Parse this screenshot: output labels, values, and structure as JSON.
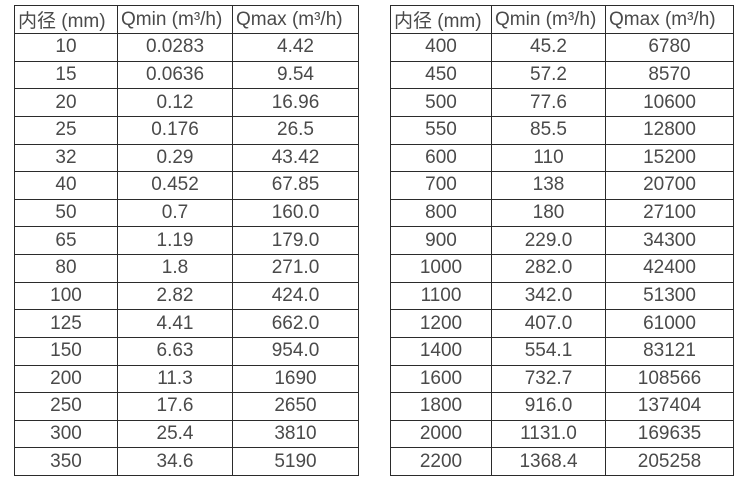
{
  "page": {
    "background_color": "#ffffff",
    "border_color": "#2b2b2b",
    "text_color": "#4a4a4a"
  },
  "tables": [
    {
      "name": "flow-table-left",
      "headers": [
        "内径 (mm)",
        "Qmin (m³/h)",
        "Qmax (m³/h)"
      ],
      "rows": [
        [
          "10",
          "0.0283",
          "4.42"
        ],
        [
          "15",
          "0.0636",
          "9.54"
        ],
        [
          "20",
          "0.12",
          "16.96"
        ],
        [
          "25",
          "0.176",
          "26.5"
        ],
        [
          "32",
          "0.29",
          "43.42"
        ],
        [
          "40",
          "0.452",
          "67.85"
        ],
        [
          "50",
          "0.7",
          "160.0"
        ],
        [
          "65",
          "1.19",
          "179.0"
        ],
        [
          "80",
          "1.8",
          "271.0"
        ],
        [
          "100",
          "2.82",
          "424.0"
        ],
        [
          "125",
          "4.41",
          "662.0"
        ],
        [
          "150",
          "6.63",
          "954.0"
        ],
        [
          "200",
          "11.3",
          "1690"
        ],
        [
          "250",
          "17.6",
          "2650"
        ],
        [
          "300",
          "25.4",
          "3810"
        ],
        [
          "350",
          "34.6",
          "5190"
        ]
      ]
    },
    {
      "name": "flow-table-right",
      "headers": [
        "内径 (mm)",
        "Qmin (m³/h)",
        "Qmax (m³/h)"
      ],
      "rows": [
        [
          "400",
          "45.2",
          "6780"
        ],
        [
          "450",
          "57.2",
          "8570"
        ],
        [
          "500",
          "77.6",
          "10600"
        ],
        [
          "550",
          "85.5",
          "12800"
        ],
        [
          "600",
          "110",
          "15200"
        ],
        [
          "700",
          "138",
          "20700"
        ],
        [
          "800",
          "180",
          "27100"
        ],
        [
          "900",
          "229.0",
          "34300"
        ],
        [
          "1000",
          "282.0",
          "42400"
        ],
        [
          "1100",
          "342.0",
          "51300"
        ],
        [
          "1200",
          "407.0",
          "61000"
        ],
        [
          "1400",
          "554.1",
          "83121"
        ],
        [
          "1600",
          "732.7",
          "108566"
        ],
        [
          "1800",
          "916.0",
          "137404"
        ],
        [
          "2000",
          "1131.0",
          "169635"
        ],
        [
          "2200",
          "1368.4",
          "205258"
        ]
      ]
    }
  ]
}
